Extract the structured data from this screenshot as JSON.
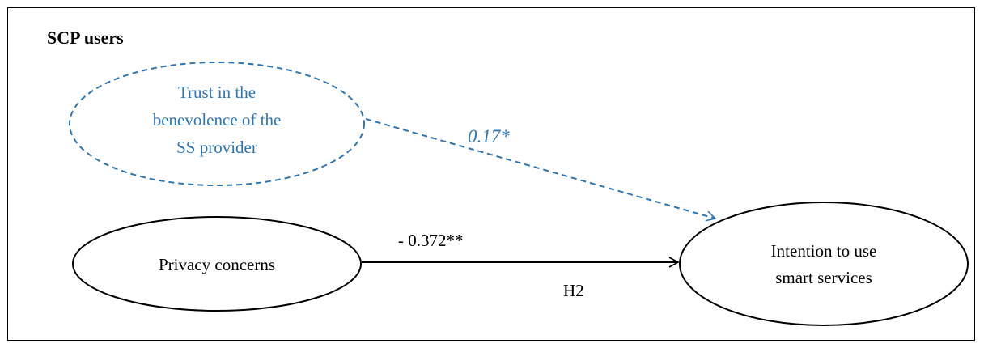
{
  "title": "SCP users",
  "nodes": {
    "trust": {
      "lines": [
        "Trust in the",
        "benevolence of the",
        "SS provider"
      ],
      "style": "dashed",
      "color": "#2e75b6"
    },
    "privacy": {
      "lines": [
        "Privacy concerns"
      ],
      "style": "solid",
      "color": "#000000"
    },
    "intention": {
      "lines": [
        "Intention to use",
        "smart services"
      ],
      "style": "solid",
      "color": "#000000"
    }
  },
  "edges": {
    "trust_to_intention": {
      "coefficient": "0.17*",
      "style": "dashed",
      "color": "#2e75b6"
    },
    "privacy_to_intention": {
      "coefficient": "- 0.372**",
      "hypothesis": "H2",
      "style": "solid",
      "color": "#000000"
    }
  }
}
